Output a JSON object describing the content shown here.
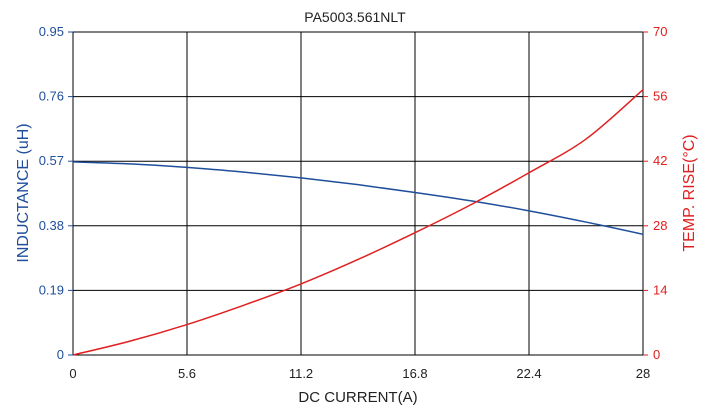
{
  "chart_data": {
    "type": "line",
    "title": "PA5003.561NLT",
    "xlabel": "DC CURRENT(A)",
    "ylabel_left": "INDUCTANCE (uH)",
    "ylabel_right": "TEMP. RISE(°C)",
    "xlim": [
      0,
      28
    ],
    "ylim_left": [
      0,
      0.95
    ],
    "ylim_right": [
      0,
      70
    ],
    "x_ticks": [
      "0",
      "5.6",
      "11.2",
      "16.8",
      "22.4",
      "28"
    ],
    "y_ticks_left": [
      "0",
      "0.19",
      "0.38",
      "0.57",
      "0.76",
      "0.95"
    ],
    "y_ticks_right": [
      "0",
      "14",
      "28",
      "42",
      "56",
      "70"
    ],
    "grid": true,
    "colors": {
      "inductance": "#1f4e9c",
      "temp_rise": "#e02020",
      "grid": "#000000"
    },
    "series": [
      {
        "axis": "left",
        "color": "#1f4e9c",
        "x": [
          0,
          2.8,
          5.6,
          8.4,
          11.2,
          14,
          16.8,
          19.6,
          22.4,
          25.2,
          28
        ],
        "values": [
          0.568,
          0.562,
          0.552,
          0.538,
          0.521,
          0.501,
          0.478,
          0.453,
          0.424,
          0.391,
          0.355
        ]
      },
      {
        "axis": "right",
        "color": "#e02020",
        "x": [
          0,
          2.8,
          5.6,
          8.4,
          11.2,
          14,
          16.8,
          19.6,
          22.4,
          25.2,
          28
        ],
        "values": [
          0,
          3.0,
          6.6,
          10.8,
          15.4,
          20.7,
          26.5,
          32.7,
          39.5,
          46.8,
          57.5
        ]
      }
    ]
  }
}
